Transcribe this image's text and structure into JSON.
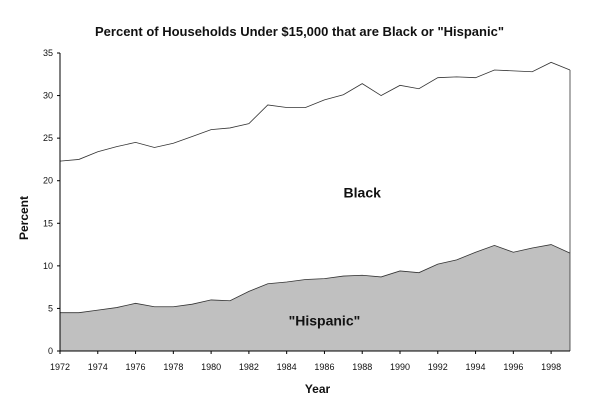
{
  "chart_data": {
    "type": "area",
    "title": "Percent of Households Under $15,000 that are Black or \"Hispanic\"",
    "xlabel": "Year",
    "ylabel": "Percent",
    "x": [
      1972,
      1973,
      1974,
      1975,
      1976,
      1977,
      1978,
      1979,
      1980,
      1981,
      1982,
      1983,
      1984,
      1985,
      1986,
      1987,
      1988,
      1989,
      1990,
      1991,
      1992,
      1993,
      1994,
      1995,
      1996,
      1997,
      1998,
      1999
    ],
    "x_ticks": [
      "1972",
      "1974",
      "1976",
      "1978",
      "1980",
      "1982",
      "1984",
      "1986",
      "1988",
      "1990",
      "1992",
      "1994",
      "1996",
      "1998"
    ],
    "y_ticks": [
      "0",
      "5",
      "10",
      "15",
      "20",
      "25",
      "30",
      "35"
    ],
    "ylim": [
      0,
      35
    ],
    "xlim": [
      1972,
      1999
    ],
    "stacked": true,
    "series": [
      {
        "name": "\"Hispanic\"",
        "color": "#c0c0c0",
        "values": [
          4.5,
          4.5,
          4.8,
          5.1,
          5.6,
          5.2,
          5.2,
          5.5,
          6.0,
          5.9,
          7.0,
          7.9,
          8.1,
          8.4,
          8.5,
          8.8,
          8.9,
          8.7,
          9.4,
          9.2,
          10.2,
          10.7,
          11.6,
          12.4,
          11.6,
          12.1,
          12.5,
          11.5
        ]
      },
      {
        "name": "Black",
        "color": "#ffffff",
        "values": [
          17.8,
          18.0,
          18.6,
          18.9,
          18.9,
          18.7,
          19.2,
          19.7,
          20.0,
          20.3,
          19.7,
          21.0,
          20.5,
          20.2,
          21.0,
          21.3,
          22.5,
          21.3,
          21.8,
          21.6,
          21.9,
          21.5,
          20.5,
          20.6,
          21.3,
          20.7,
          21.4,
          21.5
        ]
      }
    ],
    "area_labels": {
      "black": "Black",
      "hispanic": "\"Hispanic\""
    },
    "grid": false,
    "legend": "none"
  }
}
